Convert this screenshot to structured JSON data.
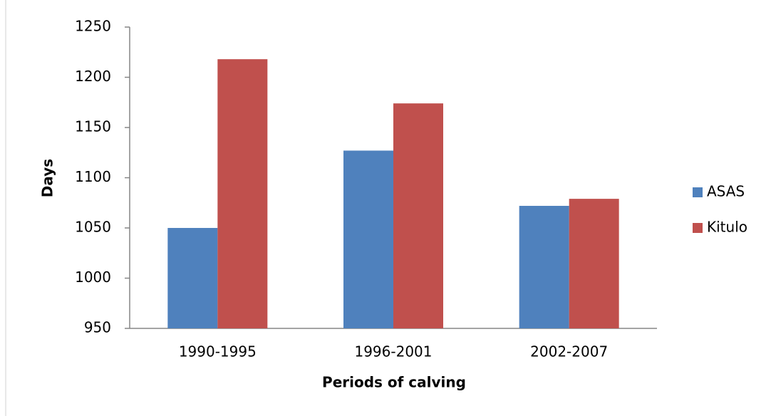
{
  "chart_data": {
    "type": "bar",
    "x_label": "Periods of calving",
    "y_label": "Days",
    "categories": [
      "1990-1995",
      "1996-2001",
      "2002-2007"
    ],
    "series": [
      {
        "name": "ASAS",
        "color": "#4f81bd",
        "values": [
          1050,
          1127,
          1072
        ]
      },
      {
        "name": "Kitulo",
        "color": "#c0504d",
        "values": [
          1218,
          1174,
          1079
        ]
      }
    ],
    "ylim": [
      950,
      1250
    ],
    "yticks": [
      950,
      1000,
      1050,
      1100,
      1150,
      1200,
      1250
    ],
    "grid": false,
    "legend": "right"
  }
}
